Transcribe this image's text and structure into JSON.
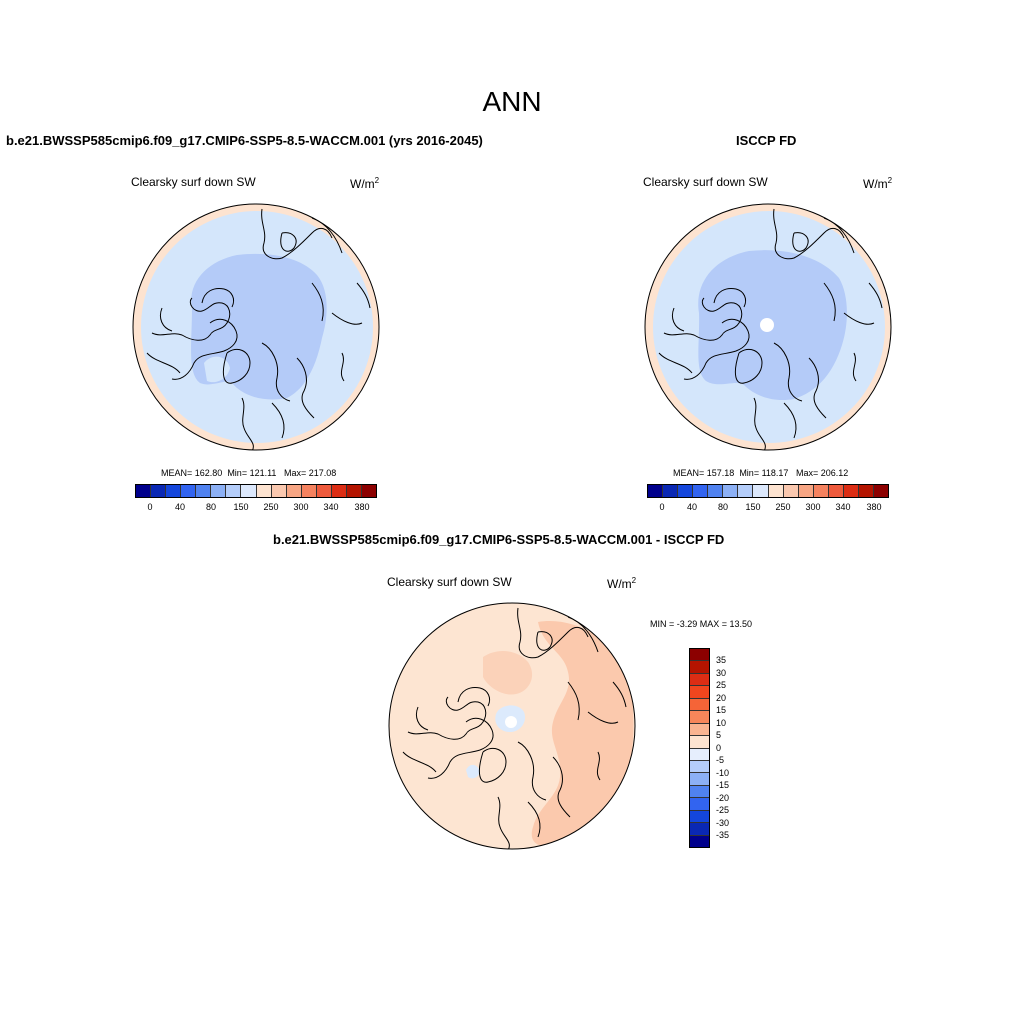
{
  "figure": {
    "season": "ANN",
    "top_left": {
      "title": "b.e21.BWSSP585cmip6.f09_g17.CMIP6-SSP5-8.5-WACCM.001 (yrs 2016-2045)",
      "variable": "Clearsky surf down SW",
      "units": "W/m",
      "units_sup": "2",
      "mean_label": "MEAN= 162.80",
      "min_label": "Min= 121.11",
      "max_label": "Max= 217.08"
    },
    "top_right": {
      "title": "ISCCP FD",
      "variable": "Clearsky surf down SW",
      "units": "W/m",
      "units_sup": "2",
      "mean_label": "MEAN= 157.18",
      "min_label": "Min= 118.17",
      "max_label": "Max= 206.12"
    },
    "diff": {
      "title": "b.e21.BWSSP585cmip6.f09_g17.CMIP6-SSP5-8.5-WACCM.001 - ISCCP FD",
      "variable": "Clearsky surf down SW",
      "units": "W/m",
      "units_sup": "2",
      "minmax_label": "MIN =  -3.29 MAX =  13.50"
    }
  },
  "colorbar_abs": {
    "tick_labels": [
      "0",
      "40",
      "80",
      "150",
      "250",
      "300",
      "340",
      "380"
    ],
    "colors": [
      "#00008c",
      "#0a28b4",
      "#1446dc",
      "#3264f0",
      "#5082f0",
      "#8cb0f5",
      "#b4cdfa",
      "#dce8fc",
      "#fde3d0",
      "#fac8af",
      "#f7a583",
      "#f5825f",
      "#ef5a3c",
      "#dc2d14",
      "#b41400",
      "#8c0000"
    ]
  },
  "colorbar_diff": {
    "tick_labels": [
      "35",
      "30",
      "25",
      "20",
      "15",
      "10",
      "5",
      "0",
      "-5",
      "-10",
      "-15",
      "-20",
      "-25",
      "-30",
      "-35"
    ],
    "colors": [
      "#8c0000",
      "#b41400",
      "#dc2d14",
      "#f0461e",
      "#f56437",
      "#f7865a",
      "#fab491",
      "#fde3d0",
      "#e6eefd",
      "#b4cdfa",
      "#8cb0f5",
      "#5082f0",
      "#3264f0",
      "#1446dc",
      "#0a28b4",
      "#00008c"
    ]
  },
  "map_colors": {
    "outer_ring": "#fde3d0",
    "light_blue": "#d4e6fb",
    "mid_blue": "#b4cbf8",
    "diff_base": "#fde5d2",
    "diff_mid": "#fbc9ad",
    "diff_pale_blue": "#dceafc",
    "land_line": "#000000"
  }
}
